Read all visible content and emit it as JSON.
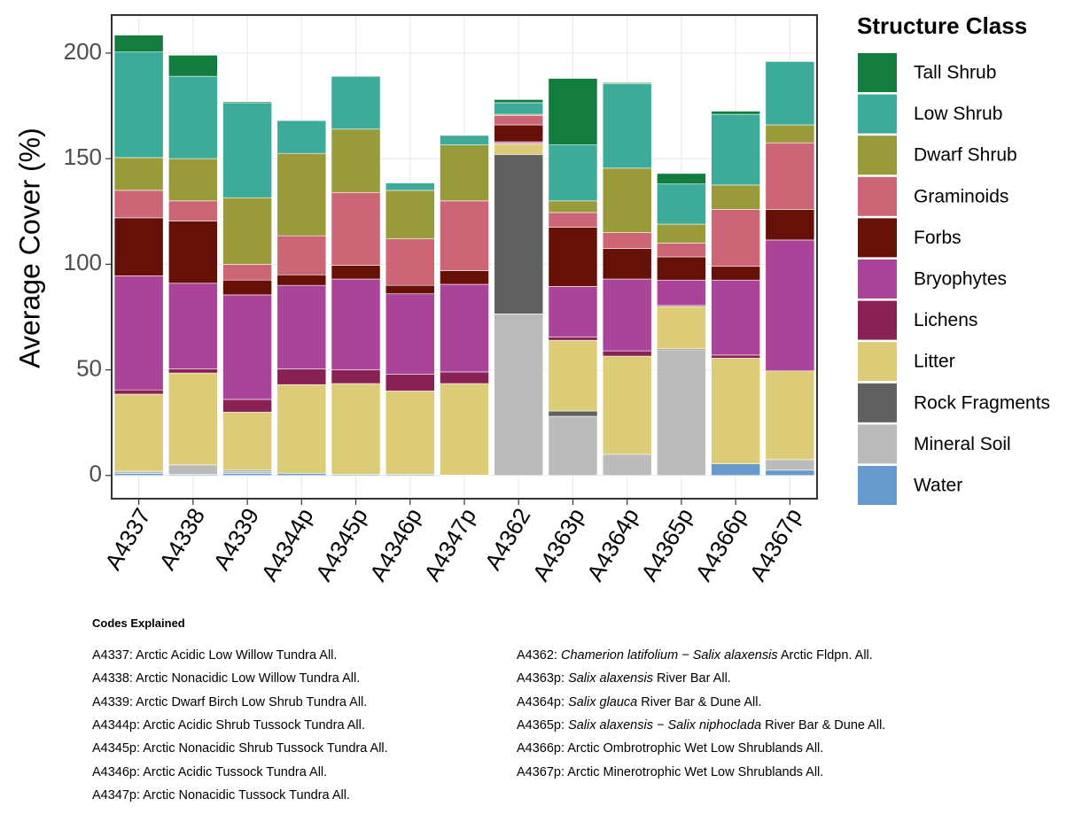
{
  "chart_data": {
    "type": "stacked_bar",
    "y_label": "Average Cover (%)",
    "legend_title": "Structure Class",
    "categories": [
      "A4337",
      "A4338",
      "A4339",
      "A4344p",
      "A4345p",
      "A4346p",
      "A4347p",
      "A4362",
      "A4363p",
      "A4364p",
      "A4365p",
      "A4366p",
      "A4367p"
    ],
    "ylim": [
      -11,
      218
    ],
    "yticks": [
      0,
      50,
      100,
      150,
      200
    ],
    "grid": true,
    "series": [
      {
        "name": "Tall Shrub",
        "color": "#127d3e",
        "values": [
          8,
          10,
          0.5,
          0.3,
          0,
          0,
          0,
          1.5,
          31.5,
          0.5,
          5,
          1.5,
          0
        ]
      },
      {
        "name": "Low Shrub",
        "color": "#3dab9a",
        "values": [
          50,
          39,
          45,
          15.5,
          25,
          3.5,
          4.5,
          5.5,
          26.5,
          40,
          19,
          33.5,
          30
        ]
      },
      {
        "name": "Dwarf Shrub",
        "color": "#999a3a",
        "values": [
          15.5,
          20,
          31.5,
          39,
          30,
          23,
          26.5,
          0.5,
          5.5,
          30.5,
          9,
          11.5,
          8.5
        ]
      },
      {
        "name": "Graminoids",
        "color": "#cc6677",
        "values": [
          13,
          9.5,
          7.5,
          18.5,
          34.5,
          22,
          33,
          4.5,
          7,
          7.5,
          6.5,
          27,
          31.5
        ]
      },
      {
        "name": "Forbs",
        "color": "#661108",
        "values": [
          27.5,
          29.5,
          7,
          5,
          6.5,
          4,
          6.5,
          8,
          28,
          14.5,
          11,
          6.5,
          14.5
        ]
      },
      {
        "name": "Bryophytes",
        "color": "#aa4499",
        "values": [
          54,
          40.5,
          49.5,
          39.5,
          43,
          38,
          41.5,
          0.5,
          24,
          34,
          12,
          35.5,
          62
        ]
      },
      {
        "name": "Lichens",
        "color": "#882255",
        "values": [
          2,
          2,
          6,
          7.5,
          6.5,
          8,
          5.5,
          0.5,
          1.5,
          2.5,
          0.5,
          1.5,
          0
        ]
      },
      {
        "name": "Litter",
        "color": "#ddcc77",
        "values": [
          36.5,
          43.5,
          27.5,
          42,
          43,
          39.5,
          43.3,
          5,
          33.5,
          46.5,
          20,
          50,
          42
        ]
      },
      {
        "name": "Rock Fragments",
        "color": "#616161",
        "values": [
          0,
          0,
          0.5,
          0,
          0,
          0,
          0,
          75.5,
          2.5,
          0,
          0.5,
          0,
          0
        ]
      },
      {
        "name": "Mineral Soil",
        "color": "#bbbbbb",
        "values": [
          1,
          4.5,
          1,
          0,
          0,
          0,
          0,
          76.5,
          28,
          10,
          59.5,
          0,
          5
        ]
      },
      {
        "name": "Water",
        "color": "#6699cc",
        "values": [
          1,
          0.5,
          1,
          1,
          0.5,
          0.5,
          0.2,
          0,
          0,
          0,
          0,
          5.5,
          2.5
        ]
      }
    ]
  },
  "notes": {
    "title": "Codes Explained",
    "left": [
      [
        "A4337: Arctic Acidic Low Willow Tundra All."
      ],
      [
        "A4338: Arctic Nonacidic Low Willow Tundra All."
      ],
      [
        "A4339: Arctic Dwarf Birch Low Shrub Tundra All."
      ],
      [
        "A4344p: Arctic Acidic Shrub Tussock Tundra All."
      ],
      [
        "A4345p: Arctic Nonacidic Shrub Tussock Tundra All."
      ],
      [
        "A4346p: Arctic Acidic Tussock Tundra All."
      ],
      [
        "A4347p: Arctic Nonacidic Tussock Tundra All."
      ]
    ],
    "right": [
      [
        "A4362: ",
        {
          "text": "Chamerion latifolium − Salix alaxensis",
          "italic": true
        },
        " Arctic Fldpn. All."
      ],
      [
        "A4363p: ",
        {
          "text": "Salix alaxensis",
          "italic": true
        },
        " River Bar All."
      ],
      [
        "A4364p: ",
        {
          "text": "Salix glauca",
          "italic": true
        },
        " River Bar & Dune All."
      ],
      [
        "A4365p: ",
        {
          "text": "Salix alaxensis − Salix niphoclada",
          "italic": true
        },
        " River Bar & Dune All."
      ],
      [
        "A4366p: Arctic Ombrotrophic Wet Low Shrublands All."
      ],
      [
        "A4367p: Arctic Minerotrophic Wet Low Shrublands All."
      ]
    ]
  }
}
